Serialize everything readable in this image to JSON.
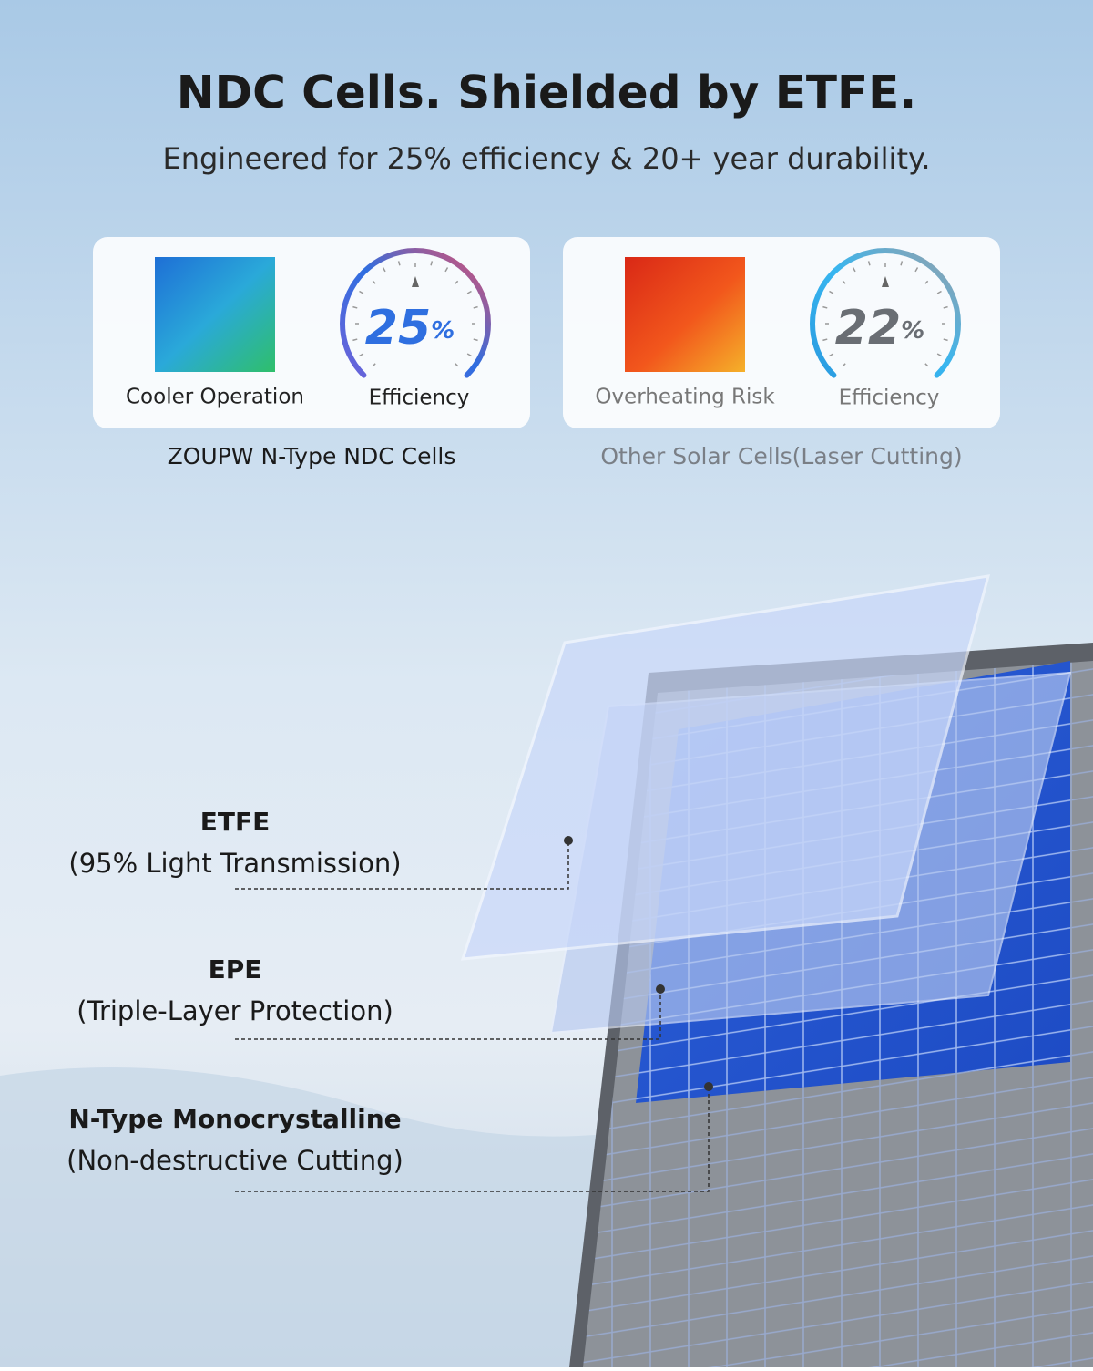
{
  "header": {
    "title": "NDC Cells. Shielded by ETFE.",
    "subtitle": "Engineered for 25% efficiency & 20+ year durability."
  },
  "comparison": [
    {
      "heat_label": "Cooler Operation",
      "gauge_value": 25,
      "gauge_unit": "%",
      "gauge_label": "Efficiency",
      "caption": "ZOUPW N-Type NDC Cells"
    },
    {
      "heat_label": "Overheating Risk",
      "gauge_value": 22,
      "gauge_unit": "%",
      "gauge_label": "Efficiency",
      "caption": "Other Solar Cells(Laser Cutting)"
    }
  ],
  "layers": [
    {
      "name": "ETFE",
      "detail": "(95% Light Transmission)"
    },
    {
      "name": "EPE",
      "detail": "(Triple-Layer Protection)"
    },
    {
      "name": "N-Type Monocrystalline",
      "detail": "(Non-destructive Cutting)"
    }
  ]
}
